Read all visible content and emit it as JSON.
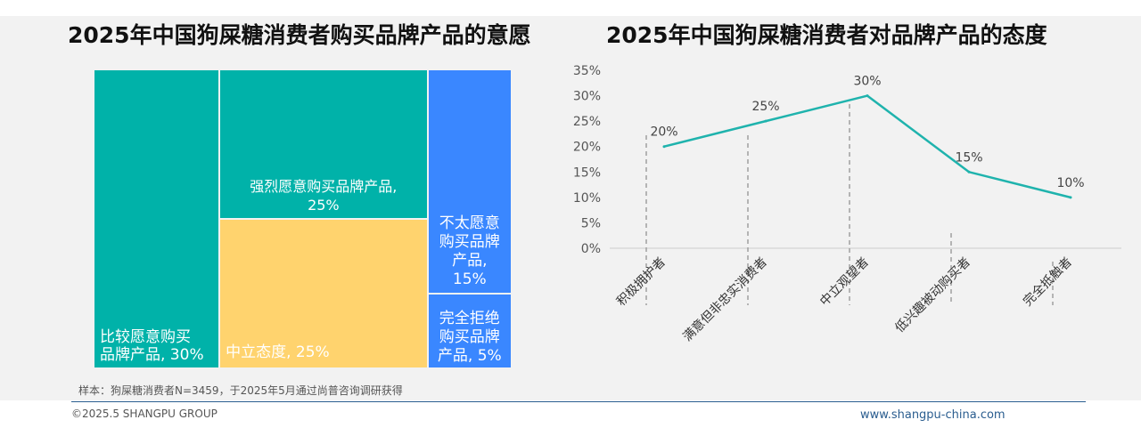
{
  "left_chart": {
    "title": "2025年中国狗屎糖消费者购买品牌产品的意愿",
    "colors": {
      "teal": "#00b2a9",
      "yellow": "#ffd36e",
      "blue": "#3a87ff"
    },
    "chart_data": {
      "type": "treemap",
      "title": "2025年中国狗屎糖消费者购买品牌产品的意愿",
      "items": [
        {
          "label": "比较愿意购买品牌产品",
          "value": 30,
          "value_label": "30%",
          "color": "teal",
          "lines": [
            "比较愿意购买",
            "品牌产品, 30%"
          ]
        },
        {
          "label": "强烈愿意购买品牌产品",
          "value": 25,
          "value_label": "25%",
          "color": "teal",
          "lines": [
            "强烈愿意购买品牌产品,",
            "25%"
          ]
        },
        {
          "label": "中立态度",
          "value": 25,
          "value_label": "25%",
          "color": "yellow",
          "lines": [
            "中立态度, 25%"
          ]
        },
        {
          "label": "不太愿意购买品牌产品",
          "value": 15,
          "value_label": "15%",
          "color": "blue",
          "lines": [
            "不太愿意",
            "购买品牌",
            "产品,",
            "15%"
          ]
        },
        {
          "label": "完全拒绝购买品牌产品",
          "value": 5,
          "value_label": "5%",
          "color": "blue",
          "lines": [
            "完全拒绝",
            "购买品牌",
            "产品, 5%"
          ]
        }
      ]
    }
  },
  "right_chart": {
    "title": "2025年中国狗屎糖消费者对品牌产品的态度",
    "line_color": "#1fb3ad",
    "chart_data": {
      "type": "line",
      "title": "2025年中国狗屎糖消费者对品牌产品的态度",
      "categories": [
        "积极拥护者",
        "满意但非忠实消费者",
        "中立观望者",
        "低兴趣被动购买者",
        "完全抵触者"
      ],
      "values": [
        20,
        25,
        30,
        15,
        10
      ],
      "data_labels": [
        "20%",
        "25%",
        "30%",
        "15%",
        "10%"
      ],
      "y_ticks": [
        "35%",
        "30%",
        "25%",
        "20%",
        "15%",
        "10%",
        "5%",
        "0%"
      ],
      "ylim": [
        0,
        35
      ],
      "grid": false,
      "legend": "none"
    }
  },
  "footer": {
    "sample_note": "样本：狗屎糖消费者N=3459，于2025年5月通过尚普咨询调研获得",
    "copyright": "©2025.5 SHANGPU GROUP",
    "website": "www.shangpu-china.com"
  }
}
